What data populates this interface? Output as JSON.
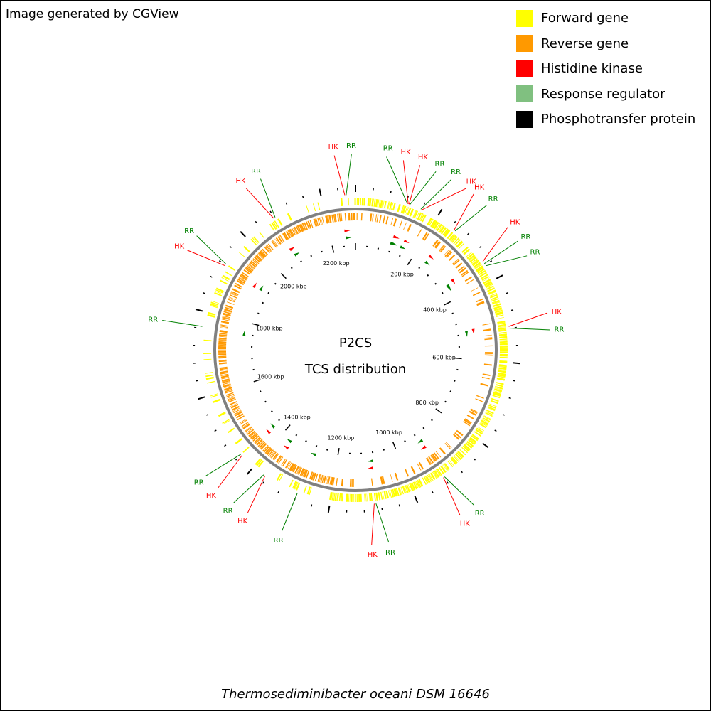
{
  "credit": "Image generated by CGView",
  "legend": [
    {
      "label": "Forward gene",
      "color": "#ffff00"
    },
    {
      "label": "Reverse gene",
      "color": "#ff9900"
    },
    {
      "label": "Histidine kinase",
      "color": "#ff0000"
    },
    {
      "label": "Response regulator",
      "color": "#80c080"
    },
    {
      "label": "Phosphotransfer protein",
      "color": "#000000"
    }
  ],
  "map": {
    "title_line1": "P2CS",
    "title_line2": "TCS distribution",
    "species": "Thermosediminibacter oceani DSM 16646",
    "genome_length_kbp": 2280,
    "tick_labels": [
      {
        "kbp": 200,
        "text": "200 kbp"
      },
      {
        "kbp": 400,
        "text": "400 kbp"
      },
      {
        "kbp": 600,
        "text": "600 kbp"
      },
      {
        "kbp": 800,
        "text": "800 kbp"
      },
      {
        "kbp": 1000,
        "text": "1000 kbp"
      },
      {
        "kbp": 1200,
        "text": "1200 kbp"
      },
      {
        "kbp": 1400,
        "text": "1400 kbp"
      },
      {
        "kbp": 1600,
        "text": "1600 kbp"
      },
      {
        "kbp": 1800,
        "text": "1800 kbp"
      },
      {
        "kbp": 2000,
        "text": "2000 kbp"
      },
      {
        "kbp": 2200,
        "text": "2200 kbp"
      }
    ],
    "colors": {
      "forward": "#ffff00",
      "reverse": "#ff9900",
      "hk": "#ff0000",
      "rr": "#008000",
      "hk_label": "#ff0000",
      "rr_label": "#008000",
      "backbone": "#808080",
      "tick": "#000000"
    },
    "callouts": [
      {
        "kbp": 2255,
        "label": "HK",
        "type": "hk"
      },
      {
        "kbp": 2258,
        "label": "RR",
        "type": "rr"
      },
      {
        "kbp": 124,
        "label": "RR",
        "type": "rr"
      },
      {
        "kbp": 126,
        "label": "HK",
        "type": "hk"
      },
      {
        "kbp": 128,
        "label": "HK",
        "type": "hk"
      },
      {
        "kbp": 130,
        "label": "RR",
        "type": "rr"
      },
      {
        "kbp": 158,
        "label": "RR",
        "type": "rr"
      },
      {
        "kbp": 161,
        "label": "HK",
        "type": "hk"
      },
      {
        "kbp": 250,
        "label": "HK",
        "type": "hk"
      },
      {
        "kbp": 253,
        "label": "RR",
        "type": "rr"
      },
      {
        "kbp": 350,
        "label": "HK",
        "type": "hk"
      },
      {
        "kbp": 356,
        "label": "RR",
        "type": "rr"
      },
      {
        "kbp": 362,
        "label": "RR",
        "type": "rr"
      },
      {
        "kbp": 515,
        "label": "HK",
        "type": "hk"
      },
      {
        "kbp": 519,
        "label": "RR",
        "type": "rr"
      },
      {
        "kbp": 918,
        "label": "RR",
        "type": "rr"
      },
      {
        "kbp": 921,
        "label": "HK",
        "type": "hk"
      },
      {
        "kbp": 1092,
        "label": "RR",
        "type": "rr"
      },
      {
        "kbp": 1096,
        "label": "HK",
        "type": "hk"
      },
      {
        "kbp": 1280,
        "label": "RR",
        "type": "rr"
      },
      {
        "kbp": 1366,
        "label": "HK",
        "type": "hk"
      },
      {
        "kbp": 1370,
        "label": "RR",
        "type": "rr"
      },
      {
        "kbp": 1438,
        "label": "HK",
        "type": "hk"
      },
      {
        "kbp": 1442,
        "label": "RR",
        "type": "rr"
      },
      {
        "kbp": 1765,
        "label": "RR",
        "type": "rr"
      },
      {
        "kbp": 1918,
        "label": "HK",
        "type": "hk"
      },
      {
        "kbp": 1922,
        "label": "RR",
        "type": "rr"
      },
      {
        "kbp": 2078,
        "label": "HK",
        "type": "hk"
      },
      {
        "kbp": 2082,
        "label": "RR",
        "type": "rr"
      }
    ]
  }
}
